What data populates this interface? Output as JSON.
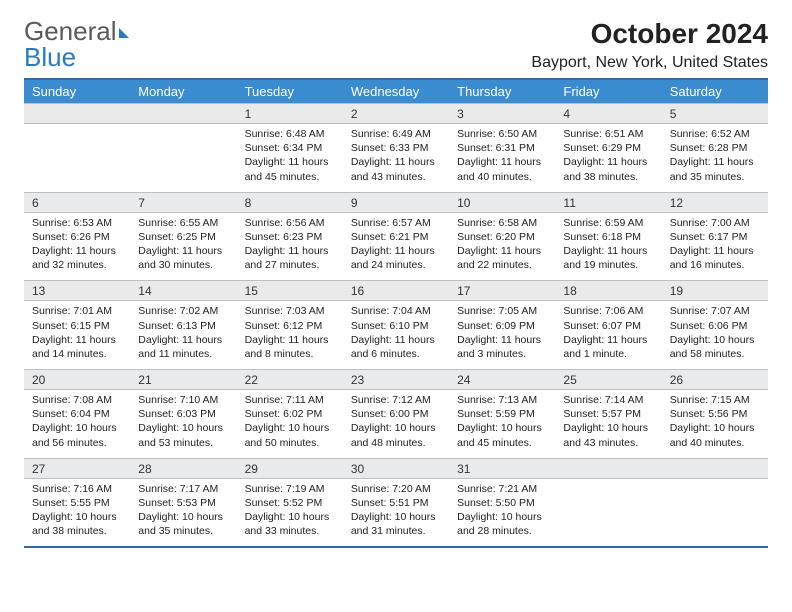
{
  "brand": {
    "part1": "General",
    "part2": "Blue"
  },
  "title": "October 2024",
  "location": "Bayport, New York, United States",
  "colors": {
    "header_bg": "#3a8bd0",
    "header_text": "#ffffff",
    "border": "#326aa0",
    "daynum_bg": "#e9eaeb",
    "text": "#222222",
    "logo_gray": "#5a5a5a",
    "logo_blue": "#2a7ac0"
  },
  "weekdays": [
    "Sunday",
    "Monday",
    "Tuesday",
    "Wednesday",
    "Thursday",
    "Friday",
    "Saturday"
  ],
  "weeks": [
    {
      "nums": [
        "",
        "",
        "1",
        "2",
        "3",
        "4",
        "5"
      ],
      "cells": [
        null,
        null,
        {
          "sr": "Sunrise: 6:48 AM",
          "ss": "Sunset: 6:34 PM",
          "d1": "Daylight: 11 hours",
          "d2": "and 45 minutes."
        },
        {
          "sr": "Sunrise: 6:49 AM",
          "ss": "Sunset: 6:33 PM",
          "d1": "Daylight: 11 hours",
          "d2": "and 43 minutes."
        },
        {
          "sr": "Sunrise: 6:50 AM",
          "ss": "Sunset: 6:31 PM",
          "d1": "Daylight: 11 hours",
          "d2": "and 40 minutes."
        },
        {
          "sr": "Sunrise: 6:51 AM",
          "ss": "Sunset: 6:29 PM",
          "d1": "Daylight: 11 hours",
          "d2": "and 38 minutes."
        },
        {
          "sr": "Sunrise: 6:52 AM",
          "ss": "Sunset: 6:28 PM",
          "d1": "Daylight: 11 hours",
          "d2": "and 35 minutes."
        }
      ]
    },
    {
      "nums": [
        "6",
        "7",
        "8",
        "9",
        "10",
        "11",
        "12"
      ],
      "cells": [
        {
          "sr": "Sunrise: 6:53 AM",
          "ss": "Sunset: 6:26 PM",
          "d1": "Daylight: 11 hours",
          "d2": "and 32 minutes."
        },
        {
          "sr": "Sunrise: 6:55 AM",
          "ss": "Sunset: 6:25 PM",
          "d1": "Daylight: 11 hours",
          "d2": "and 30 minutes."
        },
        {
          "sr": "Sunrise: 6:56 AM",
          "ss": "Sunset: 6:23 PM",
          "d1": "Daylight: 11 hours",
          "d2": "and 27 minutes."
        },
        {
          "sr": "Sunrise: 6:57 AM",
          "ss": "Sunset: 6:21 PM",
          "d1": "Daylight: 11 hours",
          "d2": "and 24 minutes."
        },
        {
          "sr": "Sunrise: 6:58 AM",
          "ss": "Sunset: 6:20 PM",
          "d1": "Daylight: 11 hours",
          "d2": "and 22 minutes."
        },
        {
          "sr": "Sunrise: 6:59 AM",
          "ss": "Sunset: 6:18 PM",
          "d1": "Daylight: 11 hours",
          "d2": "and 19 minutes."
        },
        {
          "sr": "Sunrise: 7:00 AM",
          "ss": "Sunset: 6:17 PM",
          "d1": "Daylight: 11 hours",
          "d2": "and 16 minutes."
        }
      ]
    },
    {
      "nums": [
        "13",
        "14",
        "15",
        "16",
        "17",
        "18",
        "19"
      ],
      "cells": [
        {
          "sr": "Sunrise: 7:01 AM",
          "ss": "Sunset: 6:15 PM",
          "d1": "Daylight: 11 hours",
          "d2": "and 14 minutes."
        },
        {
          "sr": "Sunrise: 7:02 AM",
          "ss": "Sunset: 6:13 PM",
          "d1": "Daylight: 11 hours",
          "d2": "and 11 minutes."
        },
        {
          "sr": "Sunrise: 7:03 AM",
          "ss": "Sunset: 6:12 PM",
          "d1": "Daylight: 11 hours",
          "d2": "and 8 minutes."
        },
        {
          "sr": "Sunrise: 7:04 AM",
          "ss": "Sunset: 6:10 PM",
          "d1": "Daylight: 11 hours",
          "d2": "and 6 minutes."
        },
        {
          "sr": "Sunrise: 7:05 AM",
          "ss": "Sunset: 6:09 PM",
          "d1": "Daylight: 11 hours",
          "d2": "and 3 minutes."
        },
        {
          "sr": "Sunrise: 7:06 AM",
          "ss": "Sunset: 6:07 PM",
          "d1": "Daylight: 11 hours",
          "d2": "and 1 minute."
        },
        {
          "sr": "Sunrise: 7:07 AM",
          "ss": "Sunset: 6:06 PM",
          "d1": "Daylight: 10 hours",
          "d2": "and 58 minutes."
        }
      ]
    },
    {
      "nums": [
        "20",
        "21",
        "22",
        "23",
        "24",
        "25",
        "26"
      ],
      "cells": [
        {
          "sr": "Sunrise: 7:08 AM",
          "ss": "Sunset: 6:04 PM",
          "d1": "Daylight: 10 hours",
          "d2": "and 56 minutes."
        },
        {
          "sr": "Sunrise: 7:10 AM",
          "ss": "Sunset: 6:03 PM",
          "d1": "Daylight: 10 hours",
          "d2": "and 53 minutes."
        },
        {
          "sr": "Sunrise: 7:11 AM",
          "ss": "Sunset: 6:02 PM",
          "d1": "Daylight: 10 hours",
          "d2": "and 50 minutes."
        },
        {
          "sr": "Sunrise: 7:12 AM",
          "ss": "Sunset: 6:00 PM",
          "d1": "Daylight: 10 hours",
          "d2": "and 48 minutes."
        },
        {
          "sr": "Sunrise: 7:13 AM",
          "ss": "Sunset: 5:59 PM",
          "d1": "Daylight: 10 hours",
          "d2": "and 45 minutes."
        },
        {
          "sr": "Sunrise: 7:14 AM",
          "ss": "Sunset: 5:57 PM",
          "d1": "Daylight: 10 hours",
          "d2": "and 43 minutes."
        },
        {
          "sr": "Sunrise: 7:15 AM",
          "ss": "Sunset: 5:56 PM",
          "d1": "Daylight: 10 hours",
          "d2": "and 40 minutes."
        }
      ]
    },
    {
      "nums": [
        "27",
        "28",
        "29",
        "30",
        "31",
        "",
        ""
      ],
      "cells": [
        {
          "sr": "Sunrise: 7:16 AM",
          "ss": "Sunset: 5:55 PM",
          "d1": "Daylight: 10 hours",
          "d2": "and 38 minutes."
        },
        {
          "sr": "Sunrise: 7:17 AM",
          "ss": "Sunset: 5:53 PM",
          "d1": "Daylight: 10 hours",
          "d2": "and 35 minutes."
        },
        {
          "sr": "Sunrise: 7:19 AM",
          "ss": "Sunset: 5:52 PM",
          "d1": "Daylight: 10 hours",
          "d2": "and 33 minutes."
        },
        {
          "sr": "Sunrise: 7:20 AM",
          "ss": "Sunset: 5:51 PM",
          "d1": "Daylight: 10 hours",
          "d2": "and 31 minutes."
        },
        {
          "sr": "Sunrise: 7:21 AM",
          "ss": "Sunset: 5:50 PM",
          "d1": "Daylight: 10 hours",
          "d2": "and 28 minutes."
        },
        null,
        null
      ]
    }
  ]
}
